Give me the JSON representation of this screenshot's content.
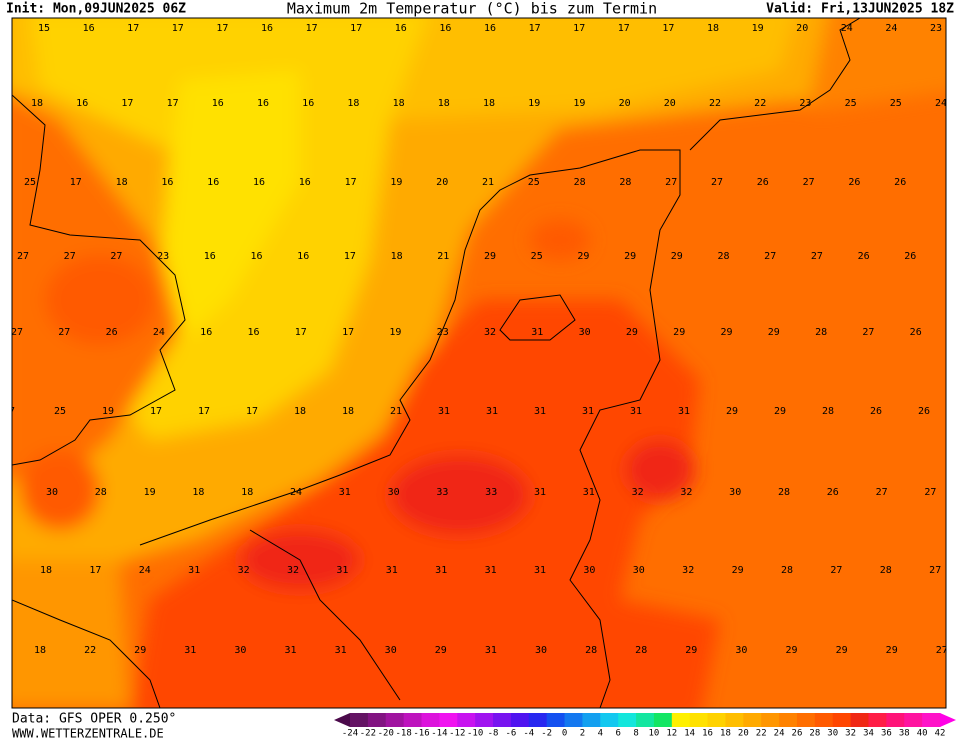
{
  "header": {
    "init": "Init: Mon,09JUN2025 06Z",
    "title": "Maximum 2m Temperatur (°C) bis zum Termin",
    "valid": "Valid: Fri,13JUN2025 18Z"
  },
  "map": {
    "rows": [
      [
        15,
        16,
        17,
        17,
        17,
        16,
        17,
        17,
        16,
        16,
        16,
        17,
        17,
        17,
        17,
        18,
        19,
        20,
        24,
        24,
        23
      ],
      [
        18,
        16,
        17,
        17,
        16,
        16,
        16,
        18,
        18,
        18,
        18,
        19,
        19,
        20,
        20,
        22,
        22,
        23,
        25,
        25,
        24
      ],
      [
        25,
        17,
        18,
        16,
        16,
        16,
        16,
        17,
        19,
        20,
        21,
        25,
        28,
        28,
        27,
        27,
        26,
        27,
        26,
        26
      ],
      [
        27,
        27,
        27,
        23,
        16,
        16,
        16,
        17,
        18,
        21,
        29,
        25,
        29,
        29,
        29,
        28,
        27,
        27,
        26,
        26
      ],
      [
        27,
        27,
        26,
        24,
        16,
        16,
        17,
        17,
        19,
        23,
        32,
        31,
        30,
        29,
        29,
        29,
        29,
        28,
        27,
        26
      ],
      [
        7,
        25,
        19,
        17,
        17,
        17,
        18,
        18,
        21,
        31,
        31,
        31,
        31,
        31,
        31,
        29,
        29,
        28,
        26,
        26
      ],
      [
        30,
        28,
        19,
        18,
        18,
        24,
        31,
        30,
        33,
        33,
        31,
        31,
        32,
        32,
        30,
        28,
        26,
        27,
        27
      ],
      [
        18,
        17,
        24,
        31,
        32,
        32,
        31,
        31,
        31,
        31,
        31,
        30,
        30,
        32,
        29,
        28,
        27,
        28,
        27
      ],
      [
        18,
        22,
        29,
        31,
        30,
        31,
        31,
        30,
        29,
        31,
        30,
        28,
        28,
        29,
        30,
        29,
        29,
        29,
        27
      ]
    ]
  },
  "legend": {
    "labels": [
      -24,
      -22,
      -20,
      -18,
      -16,
      -14,
      -12,
      -10,
      -8,
      -6,
      -4,
      -2,
      0,
      2,
      4,
      6,
      8,
      10,
      12,
      14,
      16,
      18,
      20,
      22,
      24,
      26,
      28,
      30,
      32,
      34,
      36,
      38,
      40,
      42
    ],
    "colors": [
      "#4b0a4b",
      "#641464",
      "#821482",
      "#a014a0",
      "#be14be",
      "#dc14dc",
      "#f014f0",
      "#c814f0",
      "#a014f0",
      "#7814f0",
      "#5014f0",
      "#2828f0",
      "#1450f0",
      "#1478f0",
      "#14a0f0",
      "#14c8f0",
      "#14e6dc",
      "#14e6a0",
      "#14e664",
      "#fff000",
      "#ffe100",
      "#ffd200",
      "#ffbe00",
      "#ffaa00",
      "#ff9600",
      "#ff8200",
      "#ff6e00",
      "#ff5a00",
      "#ff4600",
      "#f02814",
      "#ff1e46",
      "#ff1478",
      "#ff14a0",
      "#ff14c8",
      "#ff00e6"
    ]
  },
  "footer": {
    "data": "Data: GFS OPER 0.250°",
    "site": "WWW.WETTERZENTRALE.DE"
  }
}
